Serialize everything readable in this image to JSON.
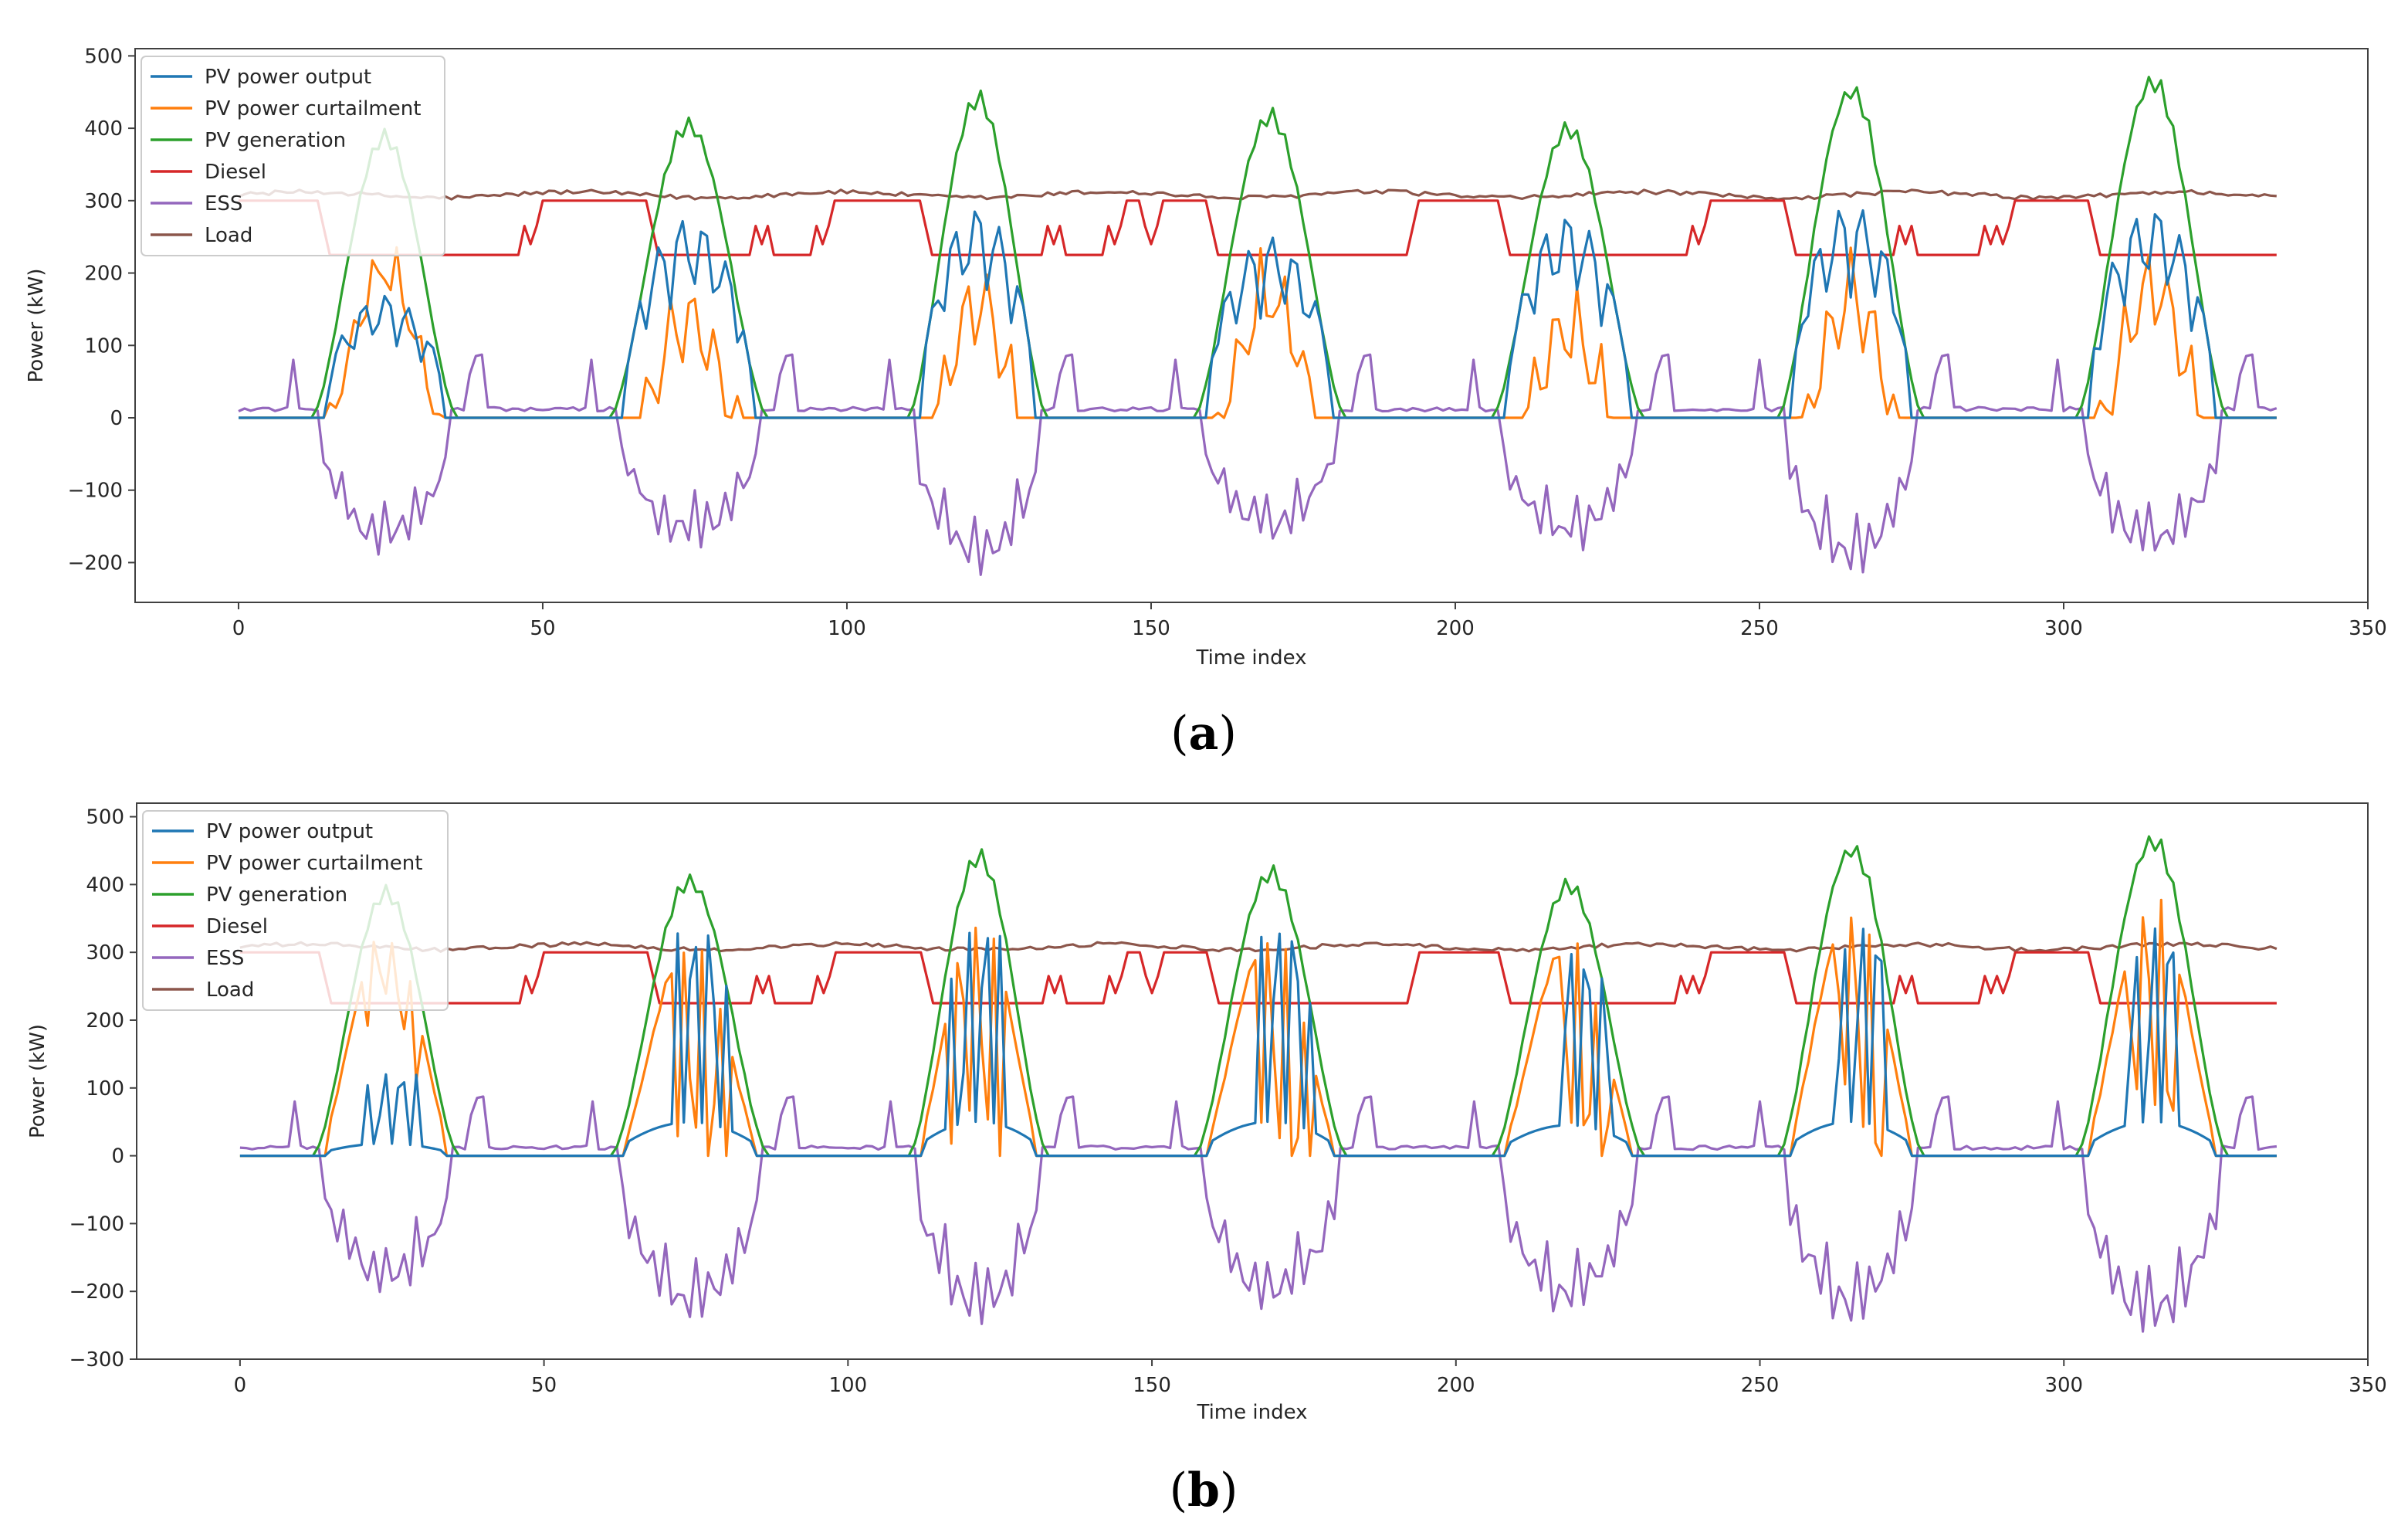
{
  "chart_data": [
    {
      "id": "a",
      "type": "line",
      "caption": "a",
      "xlabel": "Time index",
      "ylabel": "Power (kW)",
      "xlim": [
        -17,
        350
      ],
      "ylim": [
        -255,
        510
      ],
      "xticks": [
        0,
        50,
        100,
        150,
        200,
        250,
        300,
        350
      ],
      "yticks": [
        -200,
        -100,
        0,
        100,
        200,
        300,
        400,
        500
      ],
      "legend_position": "upper-left",
      "days": [
        {
          "start": 0,
          "sr": 12,
          "peak": 25,
          "ss": 36,
          "pv_max": 400,
          "out_max": 170,
          "ess_min": -190,
          "d_lo": 0,
          "d_hi": 48,
          "dips": [
            48
          ]
        },
        {
          "start": 48,
          "sr": 61,
          "peak": 76,
          "ss": 87,
          "pv_max": 418,
          "out_max": 275,
          "ess_min": -180,
          "d_lo": 68,
          "d_hi": 96,
          "dips": [
            86,
            96
          ]
        },
        {
          "start": 96,
          "sr": 110,
          "peak": 121,
          "ss": 133,
          "pv_max": 455,
          "out_max": 290,
          "ess_min": -215,
          "d_lo": 113,
          "d_hi": 144,
          "dips": [
            134,
            144
          ]
        },
        {
          "start": 144,
          "sr": 157,
          "peak": 172,
          "ss": 182,
          "pv_max": 430,
          "out_max": 250,
          "ess_min": -170,
          "d_lo": 160,
          "d_hi": 192,
          "dips": [
            144,
            150
          ]
        },
        {
          "start": 192,
          "sr": 206,
          "peak": 221,
          "ss": 231,
          "pv_max": 412,
          "out_max": 280,
          "ess_min": -180,
          "d_lo": 208,
          "d_hi": 240,
          "dips": [
            240
          ]
        },
        {
          "start": 240,
          "sr": 253,
          "peak": 266,
          "ss": 277,
          "pv_max": 468,
          "out_max": 295,
          "ess_min": -220,
          "d_lo": 255,
          "d_hi": 288,
          "dips": [
            274,
            288
          ]
        },
        {
          "start": 288,
          "sr": 302,
          "peak": 315,
          "ss": 327,
          "pv_max": 480,
          "out_max": 290,
          "ess_min": -195,
          "d_lo": 305,
          "d_hi": 336,
          "dips": [
            290
          ]
        }
      ],
      "series": [
        {
          "name": "PV power output",
          "color": "#1f77b4"
        },
        {
          "name": "PV power curtailment",
          "color": "#ff7f0e"
        },
        {
          "name": "PV generation",
          "color": "#2ca02c"
        },
        {
          "name": "Diesel",
          "color": "#d62728"
        },
        {
          "name": "ESS",
          "color": "#9467bd"
        },
        {
          "name": "Load",
          "color": "#8c564b"
        }
      ]
    },
    {
      "id": "b",
      "type": "line",
      "caption": "b",
      "xlabel": "Time index",
      "ylabel": "Power (kW)",
      "xlim": [
        -17,
        350
      ],
      "ylim": [
        -300,
        520
      ],
      "xticks": [
        0,
        50,
        100,
        150,
        200,
        250,
        300,
        350
      ],
      "yticks": [
        -300,
        -200,
        -100,
        0,
        100,
        200,
        300,
        400,
        500
      ],
      "legend_position": "upper-left",
      "days": [
        {
          "start": 0,
          "sr": 12,
          "peak": 25,
          "ss": 36,
          "pv_max": 400,
          "out_max": 120,
          "ess_min": -205,
          "d_lo": 0,
          "d_hi": 48,
          "dips": [
            48
          ]
        },
        {
          "start": 48,
          "sr": 61,
          "peak": 76,
          "ss": 87,
          "pv_max": 418,
          "out_max": 330,
          "ess_min": -245,
          "d_lo": 68,
          "d_hi": 96,
          "dips": [
            86,
            96
          ]
        },
        {
          "start": 96,
          "sr": 110,
          "peak": 121,
          "ss": 133,
          "pv_max": 455,
          "out_max": 335,
          "ess_min": -250,
          "d_lo": 113,
          "d_hi": 144,
          "dips": [
            134,
            144
          ]
        },
        {
          "start": 144,
          "sr": 157,
          "peak": 172,
          "ss": 182,
          "pv_max": 430,
          "out_max": 335,
          "ess_min": -230,
          "d_lo": 160,
          "d_hi": 192,
          "dips": [
            144,
            150
          ]
        },
        {
          "start": 192,
          "sr": 206,
          "peak": 221,
          "ss": 231,
          "pv_max": 412,
          "out_max": 300,
          "ess_min": -235,
          "d_lo": 208,
          "d_hi": 240,
          "dips": [
            238,
            240
          ]
        },
        {
          "start": 240,
          "sr": 253,
          "peak": 266,
          "ss": 277,
          "pv_max": 468,
          "out_max": 335,
          "ess_min": -250,
          "d_lo": 255,
          "d_hi": 288,
          "dips": [
            274,
            288
          ]
        },
        {
          "start": 288,
          "sr": 302,
          "peak": 315,
          "ss": 327,
          "pv_max": 480,
          "out_max": 335,
          "ess_min": -265,
          "d_lo": 305,
          "d_hi": 336,
          "dips": [
            290
          ]
        }
      ],
      "series": [
        {
          "name": "PV power output",
          "color": "#1f77b4"
        },
        {
          "name": "PV power curtailment",
          "color": "#ff7f0e"
        },
        {
          "name": "PV generation",
          "color": "#2ca02c"
        },
        {
          "name": "Diesel",
          "color": "#d62728"
        },
        {
          "name": "ESS",
          "color": "#9467bd"
        },
        {
          "name": "Load",
          "color": "#8c564b"
        }
      ]
    }
  ]
}
